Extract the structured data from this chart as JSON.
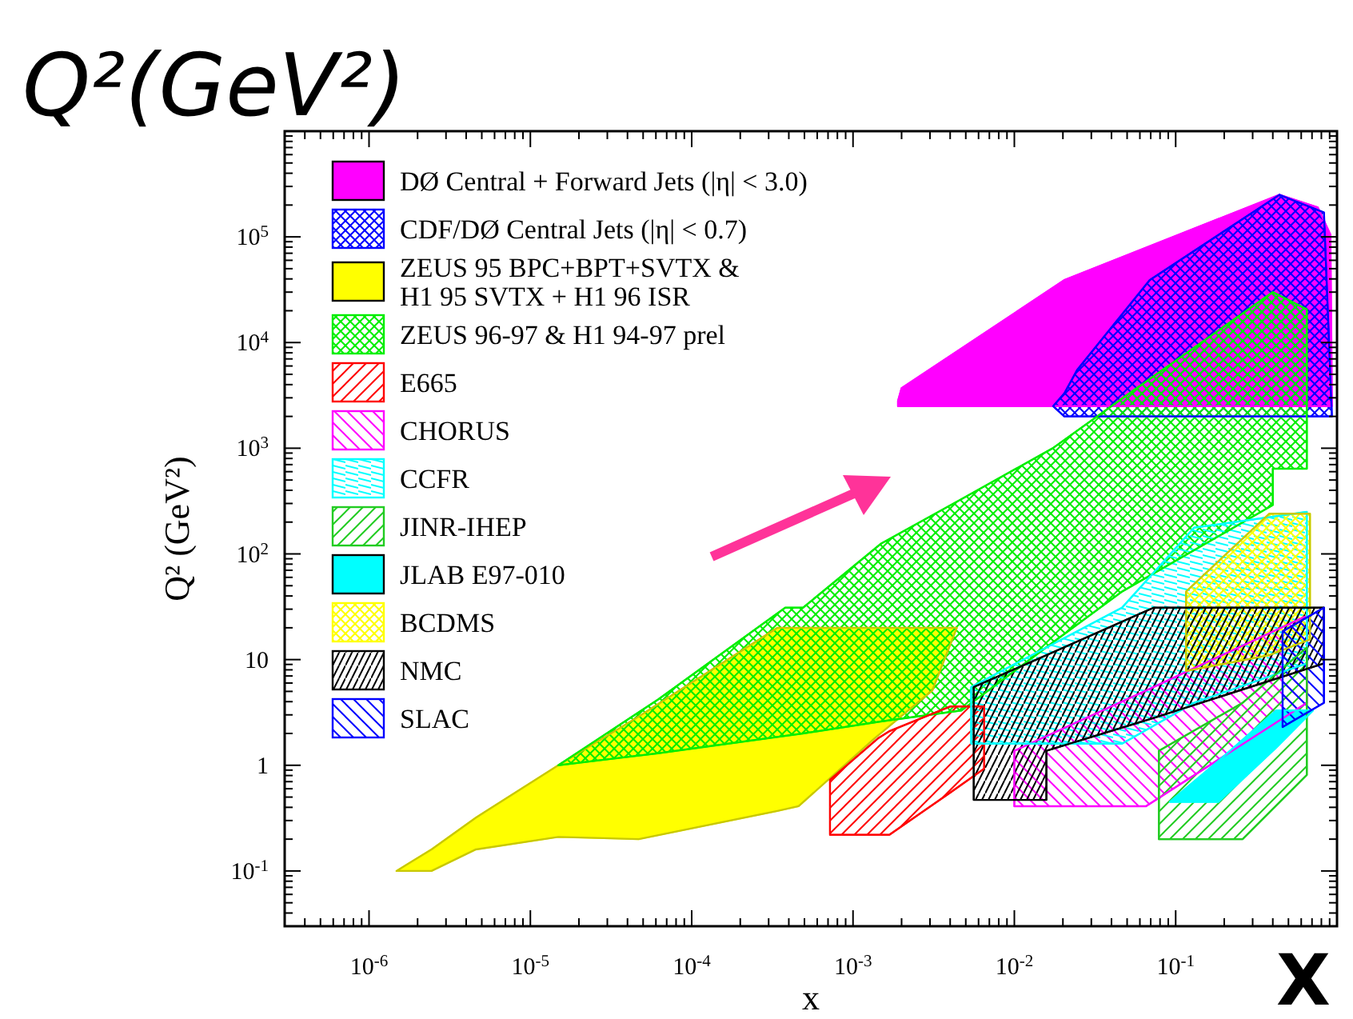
{
  "chart_data": {
    "type": "area",
    "title": "Q²(GeV²)",
    "xlabel": "x",
    "ylabel": "Q² (GeV²)",
    "annotations": [
      "X"
    ],
    "log": "xy",
    "legend": "top left",
    "xlim": [
      3e-07,
      1
    ],
    "ylim": [
      0.03,
      1000000
    ],
    "xticks": [
      {
        "value": 4e-07,
        "label": null
      },
      {
        "value": 5e-07,
        "label": null
      },
      {
        "value": 6e-07,
        "label": null
      },
      {
        "value": 7e-07,
        "label": null
      },
      {
        "value": 8e-07,
        "label": null
      },
      {
        "value": 9e-07,
        "label": null
      },
      {
        "value": 1e-06,
        "label": "10$^{-6}$"
      },
      {
        "value": 2e-06,
        "label": null
      },
      {
        "value": 3e-06,
        "label": null
      },
      {
        "value": 4e-06,
        "label": null
      },
      {
        "value": 5e-06,
        "label": null
      },
      {
        "value": 6e-06,
        "label": null
      },
      {
        "value": 7e-06,
        "label": null
      },
      {
        "value": 8e-06,
        "label": null
      },
      {
        "value": 9e-06,
        "label": null
      },
      {
        "value": 1e-05,
        "label": "10$^{-5}$"
      },
      {
        "value": 2e-05,
        "label": null
      },
      {
        "value": 3e-05,
        "label": null
      },
      {
        "value": 4e-05,
        "label": null
      },
      {
        "value": 5e-05,
        "label": null
      },
      {
        "value": 6e-05,
        "label": null
      },
      {
        "value": 7e-05,
        "label": null
      },
      {
        "value": 8e-05,
        "label": null
      },
      {
        "value": 9e-05,
        "label": null
      },
      {
        "value": 0.0001,
        "label": "10$^{-4}$"
      },
      {
        "value": 0.0002,
        "label": null
      },
      {
        "value": 0.0003,
        "label": null
      },
      {
        "value": 0.0004,
        "label": null
      },
      {
        "value": 0.0005,
        "label": null
      },
      {
        "value": 0.0006,
        "label": null
      },
      {
        "value": 0.0007,
        "label": null
      },
      {
        "value": 0.0008,
        "label": null
      },
      {
        "value": 0.0009,
        "label": null
      },
      {
        "value": 0.001,
        "label": "10$^{-3}$"
      },
      {
        "value": 0.002,
        "label": null
      },
      {
        "value": 0.003,
        "label": null
      },
      {
        "value": 0.004,
        "label": null
      },
      {
        "value": 0.005,
        "label": null
      },
      {
        "value": 0.006,
        "label": null
      },
      {
        "value": 0.007,
        "label": null
      },
      {
        "value": 0.008,
        "label": null
      },
      {
        "value": 0.009,
        "label": null
      },
      {
        "value": 0.01,
        "label": "10$^{-2}$"
      },
      {
        "value": 0.02,
        "label": null
      },
      {
        "value": 0.03,
        "label": null
      },
      {
        "value": 0.04,
        "label": null
      },
      {
        "value": 0.05,
        "label": null
      },
      {
        "value": 0.06,
        "label": null
      },
      {
        "value": 0.07,
        "label": null
      },
      {
        "value": 0.08,
        "label": null
      },
      {
        "value": 0.09,
        "label": null
      },
      {
        "value": 0.1,
        "label": "10$^{-1}$"
      },
      {
        "value": 0.2,
        "label": null
      },
      {
        "value": 0.3,
        "label": null
      },
      {
        "value": 0.4,
        "label": null
      },
      {
        "value": 0.5,
        "label": null
      },
      {
        "value": 0.6,
        "label": null
      },
      {
        "value": 0.7,
        "label": null
      },
      {
        "value": 0.8,
        "label": null
      },
      {
        "value": 0.9,
        "label": null
      },
      {
        "value": 1,
        "label": null
      }
    ],
    "yticks": [
      {
        "value": 0.04,
        "label": null
      },
      {
        "value": 0.05,
        "label": null
      },
      {
        "value": 0.06,
        "label": null
      },
      {
        "value": 0.07,
        "label": null
      },
      {
        "value": 0.08,
        "label": null
      },
      {
        "value": 0.09,
        "label": null
      },
      {
        "value": 0.1,
        "label": "10$^{-1}$"
      },
      {
        "value": 0.2,
        "label": null
      },
      {
        "value": 0.3,
        "label": null
      },
      {
        "value": 0.4,
        "label": null
      },
      {
        "value": 0.5,
        "label": null
      },
      {
        "value": 0.6,
        "label": null
      },
      {
        "value": 0.7,
        "label": null
      },
      {
        "value": 0.8,
        "label": null
      },
      {
        "value": 0.9,
        "label": null
      },
      1,
      {
        "value": 2,
        "label": null
      },
      {
        "value": 3,
        "label": null
      },
      {
        "value": 4,
        "label": null
      },
      {
        "value": 5,
        "label": null
      },
      {
        "value": 6,
        "label": null
      },
      {
        "value": 7,
        "label": null
      },
      {
        "value": 8,
        "label": null
      },
      {
        "value": 9,
        "label": null
      },
      10,
      {
        "value": 20,
        "label": null
      },
      {
        "value": 30,
        "label": null
      },
      {
        "value": 40,
        "label": null
      },
      {
        "value": 50,
        "label": null
      },
      {
        "value": 60,
        "label": null
      },
      {
        "value": 70,
        "label": null
      },
      {
        "value": 80,
        "label": null
      },
      {
        "value": 90,
        "label": null
      },
      {
        "value": 100,
        "label": "10$^{2}$"
      },
      {
        "value": 200,
        "label": null
      },
      {
        "value": 300,
        "label": null
      },
      {
        "value": 400,
        "label": null
      },
      {
        "value": 500,
        "label": null
      },
      {
        "value": 600,
        "label": null
      },
      {
        "value": 700,
        "label": null
      },
      {
        "value": 800,
        "label": null
      },
      {
        "value": 900,
        "label": null
      },
      {
        "value": 1000,
        "label": "10$^{3}$"
      },
      {
        "value": 2000,
        "label": null
      },
      {
        "value": 3000,
        "label": null
      },
      {
        "value": 4000,
        "label": null
      },
      {
        "value": 5000,
        "label": null
      },
      {
        "value": 6000,
        "label": null
      },
      {
        "value": 7000,
        "label": null
      },
      {
        "value": 8000,
        "label": null
      },
      {
        "value": 9000,
        "label": null
      },
      {
        "value": 10000,
        "label": "10$^{4}$"
      },
      {
        "value": 20000,
        "label": null
      },
      {
        "value": 30000,
        "label": null
      },
      {
        "value": 40000,
        "label": null
      },
      {
        "value": 50000,
        "label": null
      },
      {
        "value": 60000,
        "label": null
      },
      {
        "value": 70000,
        "label": null
      },
      {
        "value": 80000,
        "label": null
      },
      {
        "value": 90000,
        "label": null
      },
      {
        "value": 100000,
        "label": "10$^{5}$"
      },
      {
        "value": 200000,
        "label": null
      },
      {
        "value": 300000,
        "label": null
      },
      {
        "value": 400000,
        "label": null
      },
      {
        "value": 500000,
        "label": null
      },
      {
        "value": 600000,
        "label": null
      },
      {
        "value": 700000,
        "label": null
      },
      {
        "value": 800000,
        "label": null
      },
      {
        "value": 900000,
        "label": null
      },
      {
        "value": 1000000,
        "label": null
      }
    ],
    "series": [
      {
        "name": "DØ Central + Forward Jets (|η| < 3.0)",
        "color": "#ff00ff",
        "x": [
          0.0019,
          0.002,
          0.0204,
          0.44,
          0.76,
          0.91,
          0.93
        ],
        "values": [
          null,
          null,
          null,
          null,
          null,
          null,
          null
        ],
        "upper": [
          2800,
          3700,
          39000,
          250000,
          190000,
          105000,
          2500
        ],
        "lower": [
          2500,
          2500,
          2500,
          2500,
          2500,
          2500,
          2500
        ]
      },
      {
        "name": "CDF/DØ Central Jets (|η| < 0.7)",
        "color": "#0000ff",
        "x": [
          0.0174,
          0.0204,
          0.0245,
          0.069,
          0.44,
          0.83,
          0.93
        ],
        "values": [
          null,
          null,
          null,
          null,
          null,
          null,
          null
        ],
        "upper": [
          2500,
          3300,
          5500,
          39000,
          250000,
          170000,
          2000
        ],
        "lower": [
          2500,
          2000,
          2000,
          2000,
          2000,
          2000,
          2000
        ]
      },
      {
        "name": "ZEUS 95 BPC+BPT+SVTX &\nH1 95 SVTX + H1 96 ISR",
        "color": "#ffff00",
        "x": [
          1.48e-06,
          2.44e-06,
          4.6e-06,
          1.49e-05,
          4.7e-05,
          0.00034,
          0.00046,
          0.00136,
          0.0031,
          0.0044
        ],
        "values": [
          null,
          null,
          null,
          null,
          null,
          null,
          null,
          null,
          null,
          null
        ],
        "upper": [
          0.1,
          0.16,
          0.32,
          1,
          2.9,
          20,
          20,
          20,
          20,
          20
        ],
        "lower": [
          0.1,
          0.1,
          0.16,
          0.21,
          0.2,
          0.37,
          0.41,
          1.8,
          5.1,
          20
        ]
      },
      {
        "name": "ZEUS 96-97 & H1 94-97 prel",
        "color": "#00ee00",
        "x": [
          1.49e-05,
          6.2e-05,
          0.00038,
          0.00049,
          0.00149,
          0.0047,
          0.0173,
          0.0465,
          0.4,
          0.4,
          0.65
        ],
        "values": [
          null,
          null,
          null,
          null,
          null,
          null,
          null,
          null,
          null,
          null,
          null
        ],
        "upper": [
          1,
          4.2,
          31,
          31,
          125,
          330,
          1000,
          2950,
          30000,
          30000,
          20600
        ],
        "lower": [
          1,
          1.3,
          1.9,
          2,
          2.6,
          3.3,
          14.5,
          44,
          290,
          640,
          640
        ]
      },
      {
        "name": "E665",
        "color": "#ff0000",
        "x": [
          0.00072,
          0.00143,
          0.00168,
          0.004,
          0.0065
        ],
        "values": [
          null,
          null,
          null,
          null,
          null
        ],
        "upper": [
          0.73,
          1.8,
          2.1,
          3.6,
          3.6
        ],
        "lower": [
          0.22,
          0.22,
          0.22,
          0.55,
          0.93
        ]
      },
      {
        "name": "CHORUS",
        "color": "#ff00ff",
        "x": [
          0.01,
          0.0655,
          0.65
        ],
        "values": [
          null,
          null,
          null
        ],
        "upper": [
          1.37,
          5.1,
          26
        ],
        "lower": [
          0.41,
          0.41,
          3.9
        ]
      },
      {
        "name": "CCFR",
        "color": "#00ffff",
        "x": [
          0.0054,
          0.0465,
          0.13,
          0.65
        ],
        "values": [
          null,
          null,
          null,
          null
        ],
        "upper": [
          5.5,
          31,
          177,
          250
        ],
        "lower": [
          1.6,
          1.6,
          3.9,
          9.2
        ]
      },
      {
        "name": "JINR-IHEP",
        "color": "#22cc22",
        "x": [
          0.0787,
          0.26,
          0.65
        ],
        "values": [
          null,
          null,
          null
        ],
        "upper": [
          1.37,
          3.9,
          13
        ],
        "lower": [
          0.2,
          0.2,
          0.81
        ]
      },
      {
        "name": "JLAB E97-010",
        "color": "#00ffff",
        "x": [
          0.092,
          0.184,
          0.42,
          0.71
        ],
        "values": [
          null,
          null,
          null,
          null
        ],
        "upper": [
          0.45,
          1.1,
          3.3,
          3.3
        ],
        "lower": [
          0.45,
          0.45,
          1.47,
          3.3
        ]
      },
      {
        "name": "BCDMS",
        "color": "#ffff00",
        "x": [
          0.116,
          0.38,
          0.68
        ],
        "values": [
          null,
          null,
          null
        ],
        "upper": [
          44,
          240,
          240
        ],
        "lower": [
          7.8,
          11,
          15.5
        ]
      },
      {
        "name": "NMC",
        "color": "#000000",
        "x": [
          0.0056,
          0.0158,
          0.0158,
          0.073,
          0.83
        ],
        "values": [
          null,
          null,
          null,
          null,
          null
        ],
        "upper": [
          5.5,
          11,
          11,
          31,
          31
        ],
        "lower": [
          0.47,
          0.47,
          1.37,
          2.8,
          9.2
        ]
      },
      {
        "name": "SLAC",
        "color": "#0000ff",
        "x": [
          0.46,
          0.83
        ],
        "values": [
          null,
          null
        ],
        "upper": [
          18.5,
          31
        ],
        "lower": [
          2.3,
          3.9
        ]
      }
    ]
  }
}
